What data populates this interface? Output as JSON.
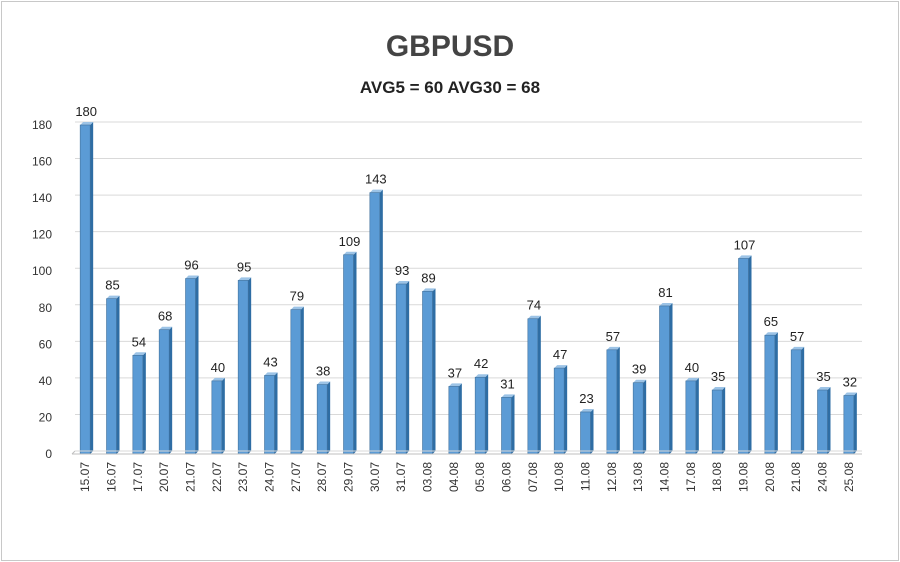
{
  "chart_data": {
    "type": "bar",
    "title": "GBPUSD",
    "subtitle": "AVG5 = 60 AVG30 = 68",
    "categories": [
      "15.07",
      "16.07",
      "17.07",
      "20.07",
      "21.07",
      "22.07",
      "23.07",
      "24.07",
      "27.07",
      "28.07",
      "29.07",
      "30.07",
      "31.07",
      "03.08",
      "04.08",
      "05.08",
      "06.08",
      "07.08",
      "10.08",
      "11.08",
      "12.08",
      "13.08",
      "14.08",
      "17.08",
      "18.08",
      "19.08",
      "20.08",
      "21.08",
      "24.08",
      "25.08"
    ],
    "values": [
      180,
      85,
      54,
      68,
      96,
      40,
      95,
      43,
      79,
      38,
      109,
      143,
      93,
      89,
      37,
      42,
      31,
      74,
      47,
      23,
      57,
      39,
      81,
      40,
      35,
      107,
      65,
      57,
      35,
      32
    ],
    "ylim": [
      0,
      180
    ],
    "yticks": [
      0,
      20,
      40,
      60,
      80,
      100,
      120,
      140,
      160,
      180
    ],
    "grid": true,
    "bar_color": "#5b9bd5",
    "bar_side_color": "#2e6da4",
    "grid_color": "#d9d9d9"
  }
}
